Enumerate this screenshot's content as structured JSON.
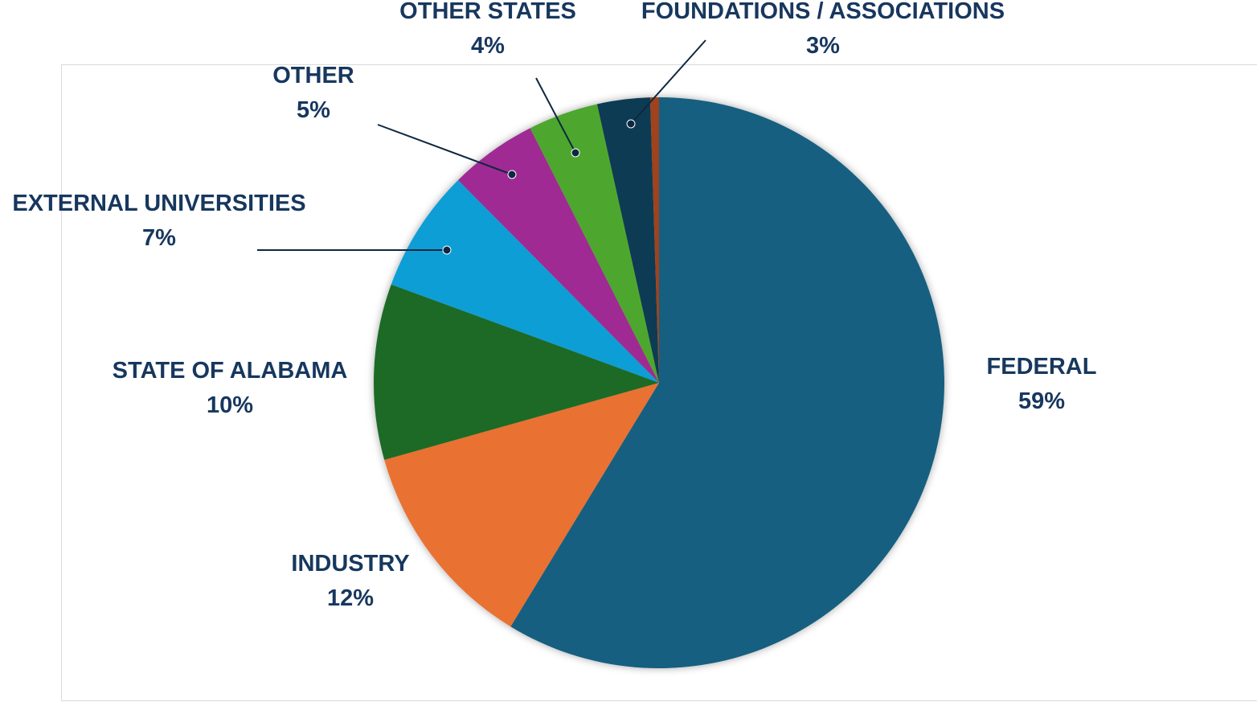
{
  "chart_data": {
    "type": "pie",
    "categories": [
      "FEDERAL",
      "INDUSTRY",
      "STATE OF ALABAMA",
      "EXTERNAL UNIVERSITIES",
      "OTHER",
      "OTHER STATES",
      "FOUNDATIONS / ASSOCIATIONS",
      null
    ],
    "values": [
      59,
      12,
      10,
      7,
      5,
      4,
      3,
      0.5
    ],
    "value_labels": [
      "59%",
      "12%",
      "10%",
      "7%",
      "5%",
      "4%",
      "3%",
      null
    ],
    "colors": [
      "#175e80",
      "#e97132",
      "#1b6b26",
      "#0f9ed5",
      "#a02b93",
      "#4ea72e",
      "#0e3a52",
      "#a0431a"
    ]
  }
}
